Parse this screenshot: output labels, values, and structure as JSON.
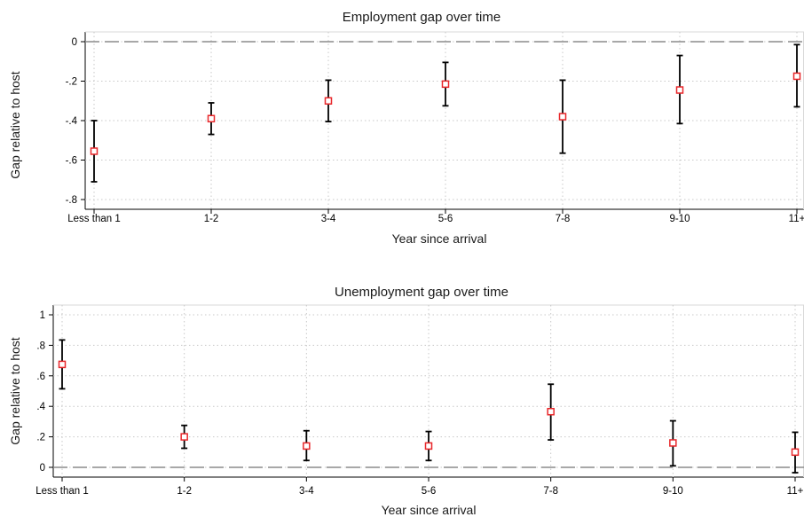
{
  "chart_data": [
    {
      "type": "scatter",
      "title": "Employment gap over time",
      "xlabel": "Year since arrival",
      "ylabel": "Gap relative to host",
      "categories": [
        "Less than 1",
        "1-2",
        "3-4",
        "5-6",
        "7-8",
        "9-10",
        "11+"
      ],
      "yticks": [
        "0",
        "-.2",
        "-.4",
        "-.6",
        "-.8"
      ],
      "ylim": [
        -0.8,
        0
      ],
      "grid": true,
      "reference_line": 0,
      "marker_color": "#e8272a",
      "errorbar_color": "#000000",
      "series": [
        {
          "estimate": [
            -0.555,
            -0.39,
            -0.3,
            -0.215,
            -0.38,
            -0.245,
            -0.175
          ],
          "ci_low": [
            -0.71,
            -0.47,
            -0.405,
            -0.325,
            -0.565,
            -0.415,
            -0.33
          ],
          "ci_high": [
            -0.4,
            -0.31,
            -0.195,
            -0.105,
            -0.195,
            -0.07,
            -0.015
          ]
        }
      ]
    },
    {
      "type": "scatter",
      "title": "Unemployment gap over time",
      "xlabel": "Year since arrival",
      "ylabel": "Gap relative to host",
      "categories": [
        "Less than 1",
        "1-2",
        "3-4",
        "5-6",
        "7-8",
        "9-10",
        "11+"
      ],
      "yticks": [
        "0",
        ".2",
        ".4",
        ".6",
        ".8",
        "1"
      ],
      "ylim": [
        0,
        1
      ],
      "grid": true,
      "reference_line": 0,
      "marker_color": "#e8272a",
      "errorbar_color": "#000000",
      "series": [
        {
          "estimate": [
            0.675,
            0.2,
            0.14,
            0.14,
            0.365,
            0.16,
            0.1
          ],
          "ci_low": [
            0.515,
            0.125,
            0.045,
            0.045,
            0.18,
            0.01,
            -0.035
          ],
          "ci_high": [
            0.835,
            0.275,
            0.24,
            0.235,
            0.545,
            0.305,
            0.23
          ]
        }
      ]
    }
  ]
}
